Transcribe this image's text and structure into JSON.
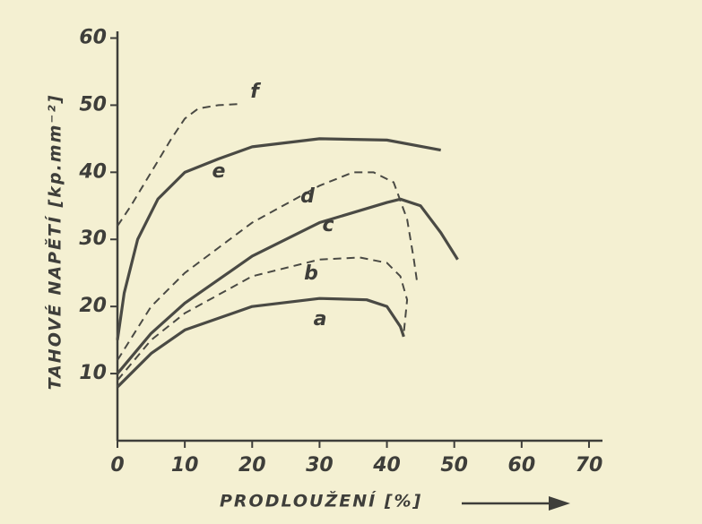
{
  "chart_data": {
    "type": "line",
    "xlabel": "PRODLOUŽENÍ [%]",
    "ylabel": "TAHOVÉ NAPĚTÍ [kp.mm⁻²]",
    "xlim": [
      0,
      72
    ],
    "ylim": [
      0,
      61
    ],
    "xticks": [
      0,
      10,
      20,
      30,
      40,
      50,
      60,
      70
    ],
    "yticks": [
      10,
      20,
      30,
      40,
      50,
      60
    ],
    "series": [
      {
        "name": "a",
        "color": "#4a4a44",
        "dashed": false,
        "x": [
          0,
          5,
          10,
          20,
          30,
          37,
          40,
          42,
          42.5
        ],
        "values": [
          8,
          13,
          16.5,
          20,
          21.2,
          21,
          20,
          17,
          15.5
        ]
      },
      {
        "name": "b",
        "color": "#4a4a44",
        "dashed": true,
        "x": [
          0,
          5,
          10,
          20,
          30,
          36,
          40,
          42,
          43,
          42.5
        ],
        "values": [
          9,
          15,
          19,
          24.5,
          27,
          27.3,
          26.5,
          24.5,
          21,
          16
        ]
      },
      {
        "name": "c",
        "color": "#4a4a44",
        "dashed": false,
        "x": [
          0,
          5,
          10,
          20,
          30,
          40,
          42,
          45,
          48,
          50.5
        ],
        "values": [
          10,
          16,
          20.5,
          27.5,
          32.5,
          35.5,
          36,
          35,
          31,
          27
        ]
      },
      {
        "name": "d",
        "color": "#4a4a44",
        "dashed": true,
        "x": [
          0,
          5,
          10,
          20,
          30,
          35,
          38,
          41,
          43,
          44,
          44.5
        ],
        "values": [
          12,
          20,
          25,
          32.5,
          38,
          40,
          40,
          38.5,
          33,
          27,
          23.5
        ]
      },
      {
        "name": "e",
        "color": "#4a4a44",
        "dashed": false,
        "x": [
          0,
          1,
          3,
          6,
          10,
          15,
          20,
          30,
          40,
          48
        ],
        "values": [
          15,
          22,
          30,
          36,
          40,
          42,
          43.8,
          45,
          44.8,
          43.3
        ]
      },
      {
        "name": "f",
        "color": "#4a4a44",
        "dashed": true,
        "x": [
          0,
          2,
          5,
          8,
          10,
          12,
          15,
          18.5
        ],
        "values": [
          32,
          35,
          40,
          45,
          48,
          49.5,
          50,
          50.2
        ]
      }
    ]
  }
}
